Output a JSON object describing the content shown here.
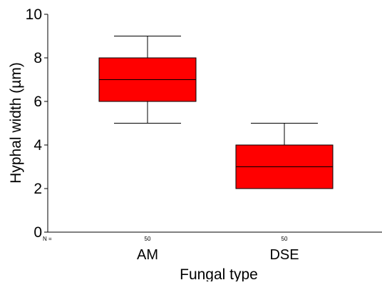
{
  "chart_data": {
    "type": "box",
    "xlabel": "Fungal type",
    "ylabel": "Hyphal width (µm)",
    "ylim": [
      0,
      10
    ],
    "yticks": [
      "0",
      "2",
      "4",
      "6",
      "8",
      "10"
    ],
    "categories": [
      "AM",
      "DSE"
    ],
    "boxes": [
      {
        "category": "AM",
        "min": 5,
        "q1": 6,
        "median": 7,
        "q3": 8,
        "max": 9,
        "n": "50"
      },
      {
        "category": "DSE",
        "min": 2,
        "q1": 2,
        "median": 3,
        "q3": 4,
        "max": 5,
        "n": "50"
      }
    ],
    "n_prefix": "N =",
    "box_color": "#ff0000",
    "line_color": "#000000",
    "grid": false
  }
}
